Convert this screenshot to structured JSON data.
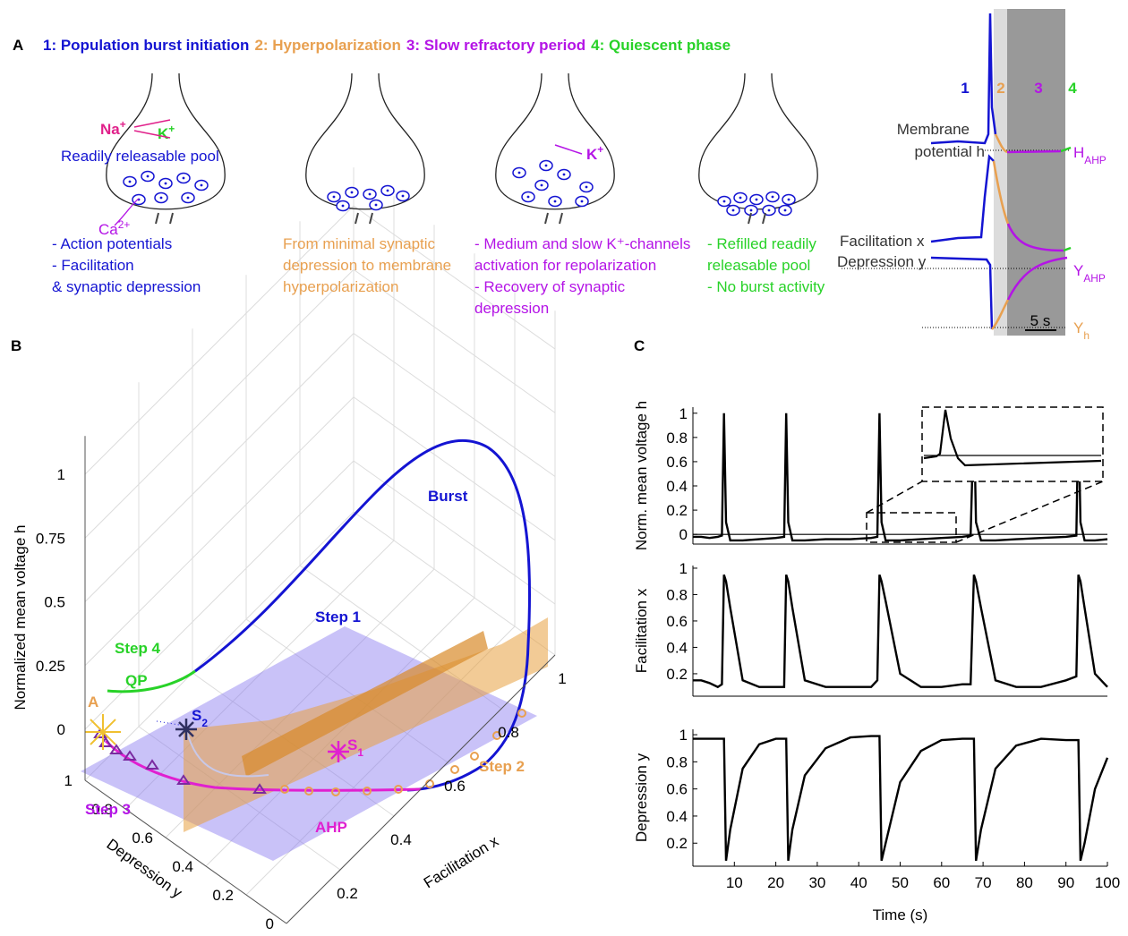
{
  "panel_a": {
    "letter": "A",
    "phases": [
      {
        "text": "1: Population burst initiation",
        "color": "#1414d2"
      },
      {
        "text": "2: Hyperpolarization",
        "color": "#e8a050"
      },
      {
        "text": "3: Slow refractory period",
        "color": "#b414e6"
      },
      {
        "text": "4: Quiescent phase",
        "color": "#28d228"
      }
    ],
    "neuron_labels": {
      "na": {
        "base": "Na",
        "sup": "+"
      },
      "k": {
        "base": "K",
        "sup": "+"
      },
      "pool": "Readily releasable pool",
      "ca": {
        "base": "Ca",
        "sup": "2+"
      },
      "k3": {
        "base": "K",
        "sup": "+"
      }
    },
    "descriptions": [
      [
        "- Action potentials",
        "- Facilitation",
        "& synaptic depression"
      ],
      [
        "From minimal synaptic",
        "depression to membrane",
        "hyperpolarization"
      ],
      [
        "- Medium and slow K⁺-channels",
        "activation for repolarization",
        "- Recovery of synaptic",
        "depression"
      ],
      [
        "- Refilled readily",
        "releasable pool",
        "- No burst activity"
      ]
    ],
    "traces": {
      "phase_numbers": [
        "1",
        "2",
        "3",
        "4"
      ],
      "membrane": [
        "Membrane",
        "potential h"
      ],
      "facilitation": "Facilitation x",
      "depression": "Depression y",
      "h_ahp": {
        "base": "H",
        "sub": "AHP"
      },
      "y_ahp": {
        "base": "Y",
        "sub": "AHP"
      },
      "y_h": {
        "base": "Y",
        "sub": "h"
      },
      "scale": "5 s"
    }
  },
  "panel_b": {
    "letter": "B",
    "zlabel": "Normalized mean voltage h",
    "xlabel": "Facilitation x",
    "ylabel": "Depression y",
    "zticks": [
      0,
      0.25,
      0.5,
      0.75,
      1
    ],
    "xticks": [
      0,
      0.2,
      0.4,
      0.6,
      0.8,
      1
    ],
    "yticks": [
      0,
      0.2,
      0.4,
      0.6,
      0.8,
      1
    ],
    "annotations": {
      "burst": "Burst",
      "step1": "Step 1",
      "step4": "Step 4",
      "qp": "QP",
      "a": "A",
      "s2": {
        "base": "S",
        "sub": "2"
      },
      "s1": {
        "base": "S",
        "sub": "1"
      },
      "step3": "Step 3",
      "ahp": "AHP",
      "step2": "Step 2"
    }
  },
  "panel_c": {
    "letter": "C"
  },
  "chart_data": [
    {
      "type": "line",
      "ylabel": "Norm. mean voltage h",
      "color": "#000000",
      "x": [
        0,
        2,
        4,
        6,
        7,
        7.5,
        8,
        9,
        12,
        16,
        20,
        22,
        22.5,
        23,
        24,
        27,
        32,
        38,
        43,
        44.5,
        45,
        45.5,
        46.5,
        50,
        55,
        60,
        65,
        67,
        67.8,
        68.3,
        69.5,
        73,
        78,
        84,
        90,
        92.5,
        93,
        93.5,
        94.5,
        97,
        100
      ],
      "values": [
        -0.02,
        -0.02,
        -0.03,
        -0.02,
        -0.01,
        1,
        0.1,
        -0.05,
        -0.05,
        -0.04,
        -0.03,
        -0.02,
        1,
        0.1,
        -0.05,
        -0.05,
        -0.04,
        -0.04,
        -0.03,
        -0.02,
        1,
        0.1,
        -0.05,
        -0.05,
        -0.04,
        -0.03,
        -0.02,
        -0.01,
        1,
        0.1,
        -0.05,
        -0.05,
        -0.04,
        -0.03,
        -0.02,
        -0.01,
        1,
        0.1,
        -0.05,
        -0.05,
        -0.04
      ],
      "xlim": [
        0,
        100
      ],
      "ylim": [
        -0.08,
        1.05
      ],
      "yticks": [
        0,
        0.2,
        0.4,
        0.6,
        0.8,
        1
      ]
    },
    {
      "type": "line",
      "ylabel": "Facilitation x",
      "color": "#000000",
      "x": [
        0,
        2,
        4,
        6,
        7,
        7.5,
        8,
        9,
        12,
        16,
        20,
        22,
        22.5,
        23,
        24,
        27,
        32,
        38,
        43,
        44.5,
        45,
        45.5,
        46.5,
        50,
        55,
        60,
        65,
        67,
        67.8,
        68.3,
        69.5,
        73,
        78,
        84,
        90,
        92.5,
        93,
        93.5,
        94.5,
        97,
        100
      ],
      "values": [
        0.15,
        0.15,
        0.13,
        0.1,
        0.12,
        0.95,
        0.9,
        0.7,
        0.15,
        0.1,
        0.1,
        0.1,
        0.95,
        0.9,
        0.7,
        0.15,
        0.1,
        0.1,
        0.1,
        0.15,
        0.95,
        0.9,
        0.75,
        0.2,
        0.1,
        0.1,
        0.12,
        0.12,
        0.95,
        0.9,
        0.7,
        0.15,
        0.1,
        0.1,
        0.15,
        0.18,
        0.95,
        0.9,
        0.7,
        0.2,
        0.1
      ],
      "xlim": [
        0,
        100
      ],
      "ylim": [
        0.03,
        1.02
      ],
      "yticks": [
        0.2,
        0.4,
        0.6,
        0.8,
        1
      ]
    },
    {
      "type": "line",
      "ylabel": "Depression y",
      "xlabel": "Time (s)",
      "color": "#000000",
      "x": [
        0,
        2,
        4,
        6,
        7,
        7.5,
        8,
        9,
        12,
        16,
        20,
        22,
        22.5,
        23,
        24,
        27,
        32,
        38,
        43,
        44.5,
        45,
        45.5,
        46.5,
        50,
        55,
        60,
        65,
        67,
        67.8,
        68.3,
        69.5,
        73,
        78,
        84,
        90,
        92.5,
        93,
        93.5,
        94.5,
        97,
        100
      ],
      "values": [
        0.97,
        0.97,
        0.97,
        0.97,
        0.97,
        0.97,
        0.07,
        0.3,
        0.75,
        0.93,
        0.97,
        0.97,
        0.97,
        0.07,
        0.3,
        0.7,
        0.9,
        0.98,
        0.99,
        0.99,
        0.99,
        0.07,
        0.2,
        0.65,
        0.88,
        0.96,
        0.97,
        0.97,
        0.97,
        0.07,
        0.3,
        0.75,
        0.92,
        0.97,
        0.96,
        0.96,
        0.96,
        0.07,
        0.2,
        0.6,
        0.83
      ],
      "xlim": [
        0,
        100
      ],
      "ylim": [
        0.03,
        1.04
      ],
      "yticks": [
        0.2,
        0.4,
        0.6,
        0.8,
        1
      ],
      "xticks": [
        10,
        20,
        30,
        40,
        50,
        60,
        70,
        80,
        90,
        100
      ]
    }
  ]
}
